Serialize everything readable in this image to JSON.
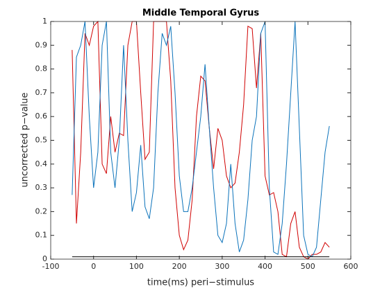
{
  "chart_data": {
    "type": "line",
    "title": "Middle Temporal Gyrus",
    "xlabel": "time(ms) peri−stimulus",
    "ylabel": "uncorrected p−value",
    "x": [
      -50,
      -40,
      -30,
      -20,
      -10,
      0,
      10,
      20,
      30,
      40,
      50,
      60,
      70,
      80,
      90,
      100,
      110,
      120,
      130,
      140,
      150,
      160,
      170,
      180,
      190,
      200,
      210,
      220,
      230,
      240,
      250,
      260,
      270,
      280,
      290,
      300,
      310,
      320,
      330,
      340,
      350,
      360,
      370,
      380,
      390,
      400,
      410,
      420,
      430,
      440,
      450,
      460,
      470,
      480,
      490,
      500,
      510,
      520,
      530,
      540,
      550
    ],
    "series": [
      {
        "color": "#d00000",
        "values": [
          0.88,
          0.15,
          0.45,
          0.95,
          0.9,
          0.98,
          1,
          0.4,
          0.36,
          0.6,
          0.45,
          0.53,
          0.52,
          0.9,
          1,
          1,
          0.7,
          0.42,
          0.45,
          1,
          1,
          1,
          1,
          0.75,
          0.3,
          0.1,
          0.04,
          0.08,
          0.25,
          0.6,
          0.77,
          0.75,
          0.55,
          0.38,
          0.55,
          0.5,
          0.35,
          0.3,
          0.32,
          0.45,
          0.65,
          0.98,
          0.97,
          0.72,
          0.95,
          0.35,
          0.27,
          0.28,
          0.2,
          0.02,
          0.01,
          0.15,
          0.2,
          0.05,
          0.01,
          0,
          0.02,
          0.02,
          0.03,
          0.07,
          0.05
        ]
      },
      {
        "color": "#0a72ba",
        "values": [
          0.27,
          0.85,
          0.9,
          1,
          0.6,
          0.3,
          0.45,
          0.9,
          1,
          0.45,
          0.3,
          0.5,
          0.9,
          0.5,
          0.2,
          0.28,
          0.48,
          0.22,
          0.17,
          0.3,
          0.7,
          0.95,
          0.9,
          0.98,
          0.7,
          0.35,
          0.2,
          0.2,
          0.3,
          0.45,
          0.6,
          0.82,
          0.55,
          0.3,
          0.1,
          0.07,
          0.15,
          0.4,
          0.15,
          0.03,
          0.08,
          0.25,
          0.5,
          0.6,
          0.95,
          1,
          0.3,
          0.03,
          0.02,
          0.15,
          0.4,
          0.7,
          1,
          0.55,
          0.1,
          0.02,
          0.01,
          0.05,
          0.25,
          0.45,
          0.56
        ]
      },
      {
        "color": "#000000",
        "values": [
          0.01,
          0.01,
          0.01,
          0.01,
          0.01,
          0.01,
          0.01,
          0.01,
          0.01,
          0.01,
          0.01,
          0.01,
          0.01,
          0.01,
          0.01,
          0.01,
          0.01,
          0.01,
          0.01,
          0.01,
          0.01,
          0.01,
          0.01,
          0.01,
          0.01,
          0.01,
          0.01,
          0.01,
          0.01,
          0.01,
          0.01,
          0.01,
          0.01,
          0.01,
          0.01,
          0.01,
          0.01,
          0.01,
          0.01,
          0.01,
          0.01,
          0.01,
          0.01,
          0.01,
          0.01,
          0.01,
          0.01,
          0.01,
          0.01,
          0.01,
          0.01,
          0.01,
          0.01,
          0.01,
          0.01,
          0.01,
          0.01,
          0.01,
          0.01,
          0.01,
          0.01
        ]
      }
    ],
    "xlim": [
      -100,
      600
    ],
    "xticks": [
      -100,
      0,
      100,
      200,
      300,
      400,
      500,
      600
    ],
    "ylim": [
      0,
      1
    ],
    "yticks": [
      0,
      0.1,
      0.2,
      0.3,
      0.4,
      0.5,
      0.6,
      0.7,
      0.8,
      0.9,
      1
    ]
  }
}
